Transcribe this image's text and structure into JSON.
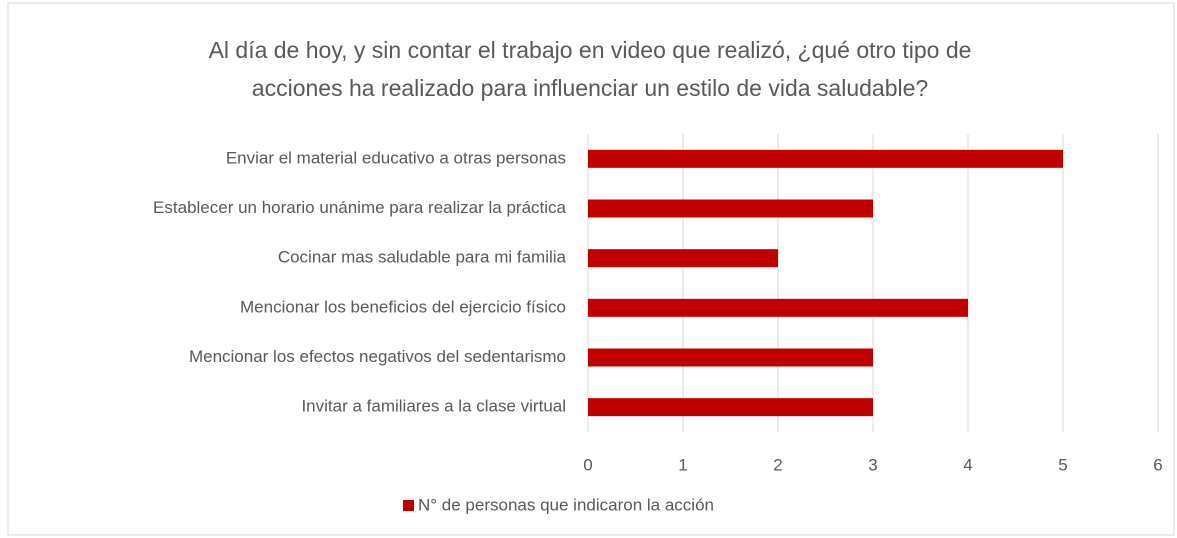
{
  "chart_data": {
    "type": "barh",
    "title": [
      "Al día de hoy, y sin contar el trabajo en video que realizó, ¿qué otro tipo de",
      "acciones ha realizado para influenciar un estilo de vida saludable?"
    ],
    "categories": [
      "Enviar el material educativo a otras personas",
      "Establecer un horario unánime para realizar la práctica",
      "Cocinar mas saludable para mi familia",
      "Mencionar los beneficios del ejercicio físico",
      "Mencionar los efectos negativos del sedentarismo",
      "Invitar a familiares a la clase virtual"
    ],
    "series": [
      {
        "name": "N° de personas que indicaron la acción",
        "color": "#c00000",
        "values": [
          5,
          3,
          2,
          4,
          3,
          3
        ]
      }
    ],
    "xlim": [
      0,
      6
    ],
    "xticks": [
      0,
      1,
      2,
      3,
      4,
      5,
      6
    ],
    "grid": true,
    "legend": "bottom"
  }
}
